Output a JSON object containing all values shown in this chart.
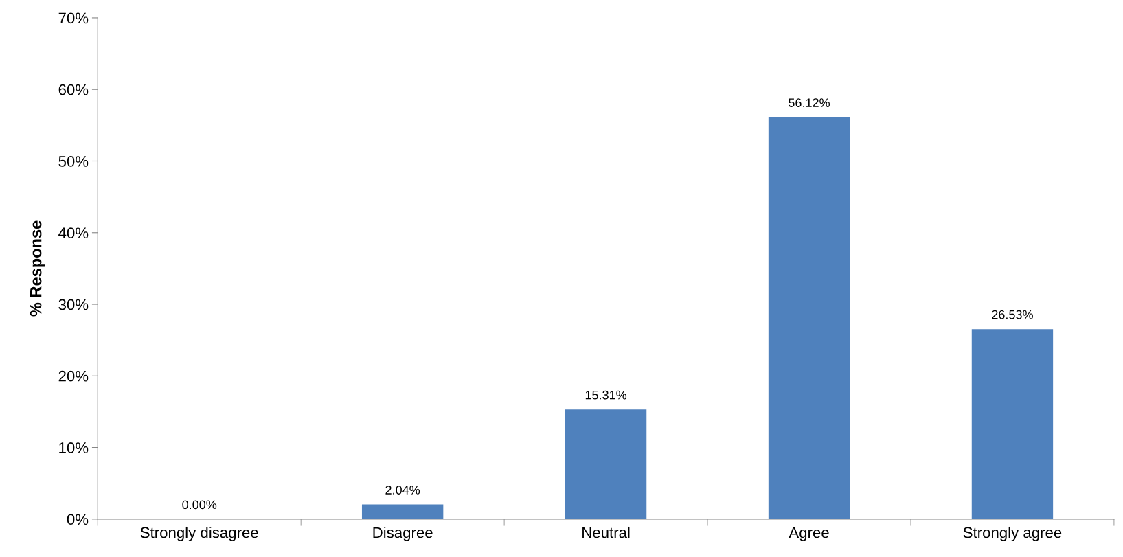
{
  "chart_data": {
    "type": "bar",
    "ylabel": "% Response",
    "categories": [
      "Strongly disagree",
      "Disagree",
      "Neutral",
      "Agree",
      "Strongly agree"
    ],
    "values": [
      0.0,
      2.04,
      15.31,
      56.12,
      26.53
    ],
    "value_labels": [
      "0.00%",
      "2.04%",
      "15.31%",
      "56.12%",
      "26.53%"
    ],
    "color": "#4f81bd",
    "ylim": [
      0,
      70
    ],
    "yticks": [
      {
        "value": 0,
        "label": "0%"
      },
      {
        "value": 10,
        "label": "10%"
      },
      {
        "value": 20,
        "label": "20%"
      },
      {
        "value": 30,
        "label": "30%"
      },
      {
        "value": 40,
        "label": "40%"
      },
      {
        "value": 50,
        "label": "50%"
      },
      {
        "value": 60,
        "label": "60%"
      },
      {
        "value": 70,
        "label": "70%"
      }
    ],
    "grid": false,
    "legend": false
  }
}
